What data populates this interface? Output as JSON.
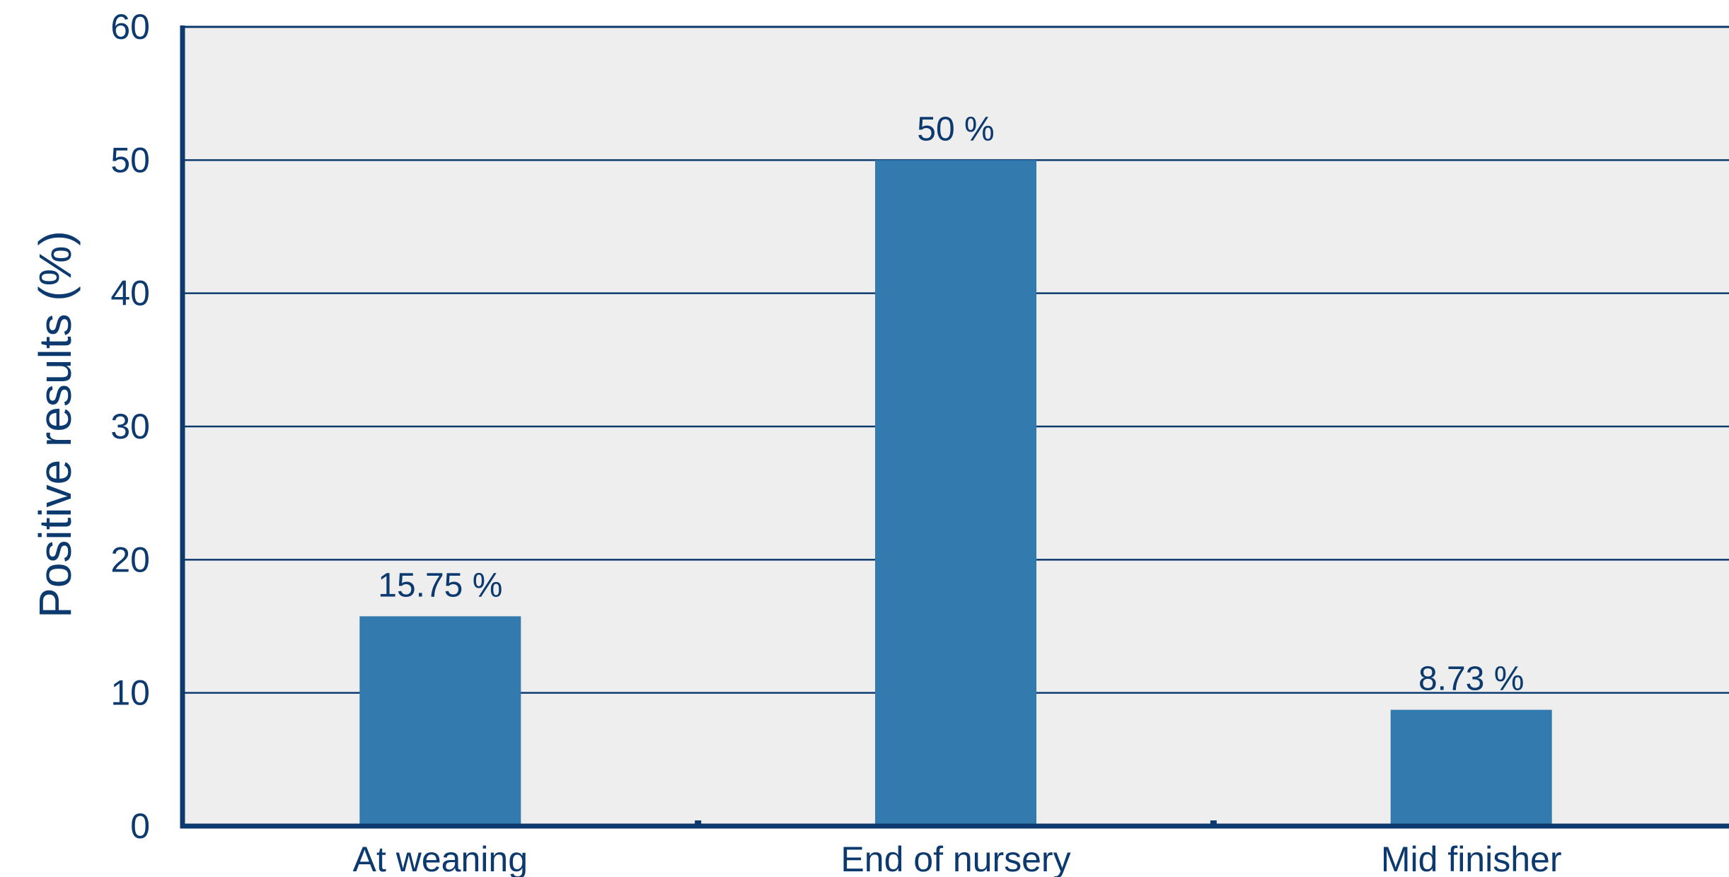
{
  "chart_data": {
    "type": "bar",
    "categories": [
      "At weaning",
      "End of nursery",
      "Mid finisher"
    ],
    "values": [
      15.75,
      50,
      8.73
    ],
    "data_labels": [
      "15.75 %",
      "50 %",
      "8.73 %"
    ],
    "ylabel": "Positive results (%)",
    "xlabel": "",
    "ylim": [
      0,
      60
    ],
    "yticks": [
      0,
      10,
      20,
      30,
      40,
      50,
      60
    ],
    "grid": true,
    "legend": "none",
    "colors": {
      "bar": "#337aae",
      "plot_background": "#eeeeee",
      "axis": "#0d3a6e",
      "text": "#0d3a6e"
    }
  }
}
